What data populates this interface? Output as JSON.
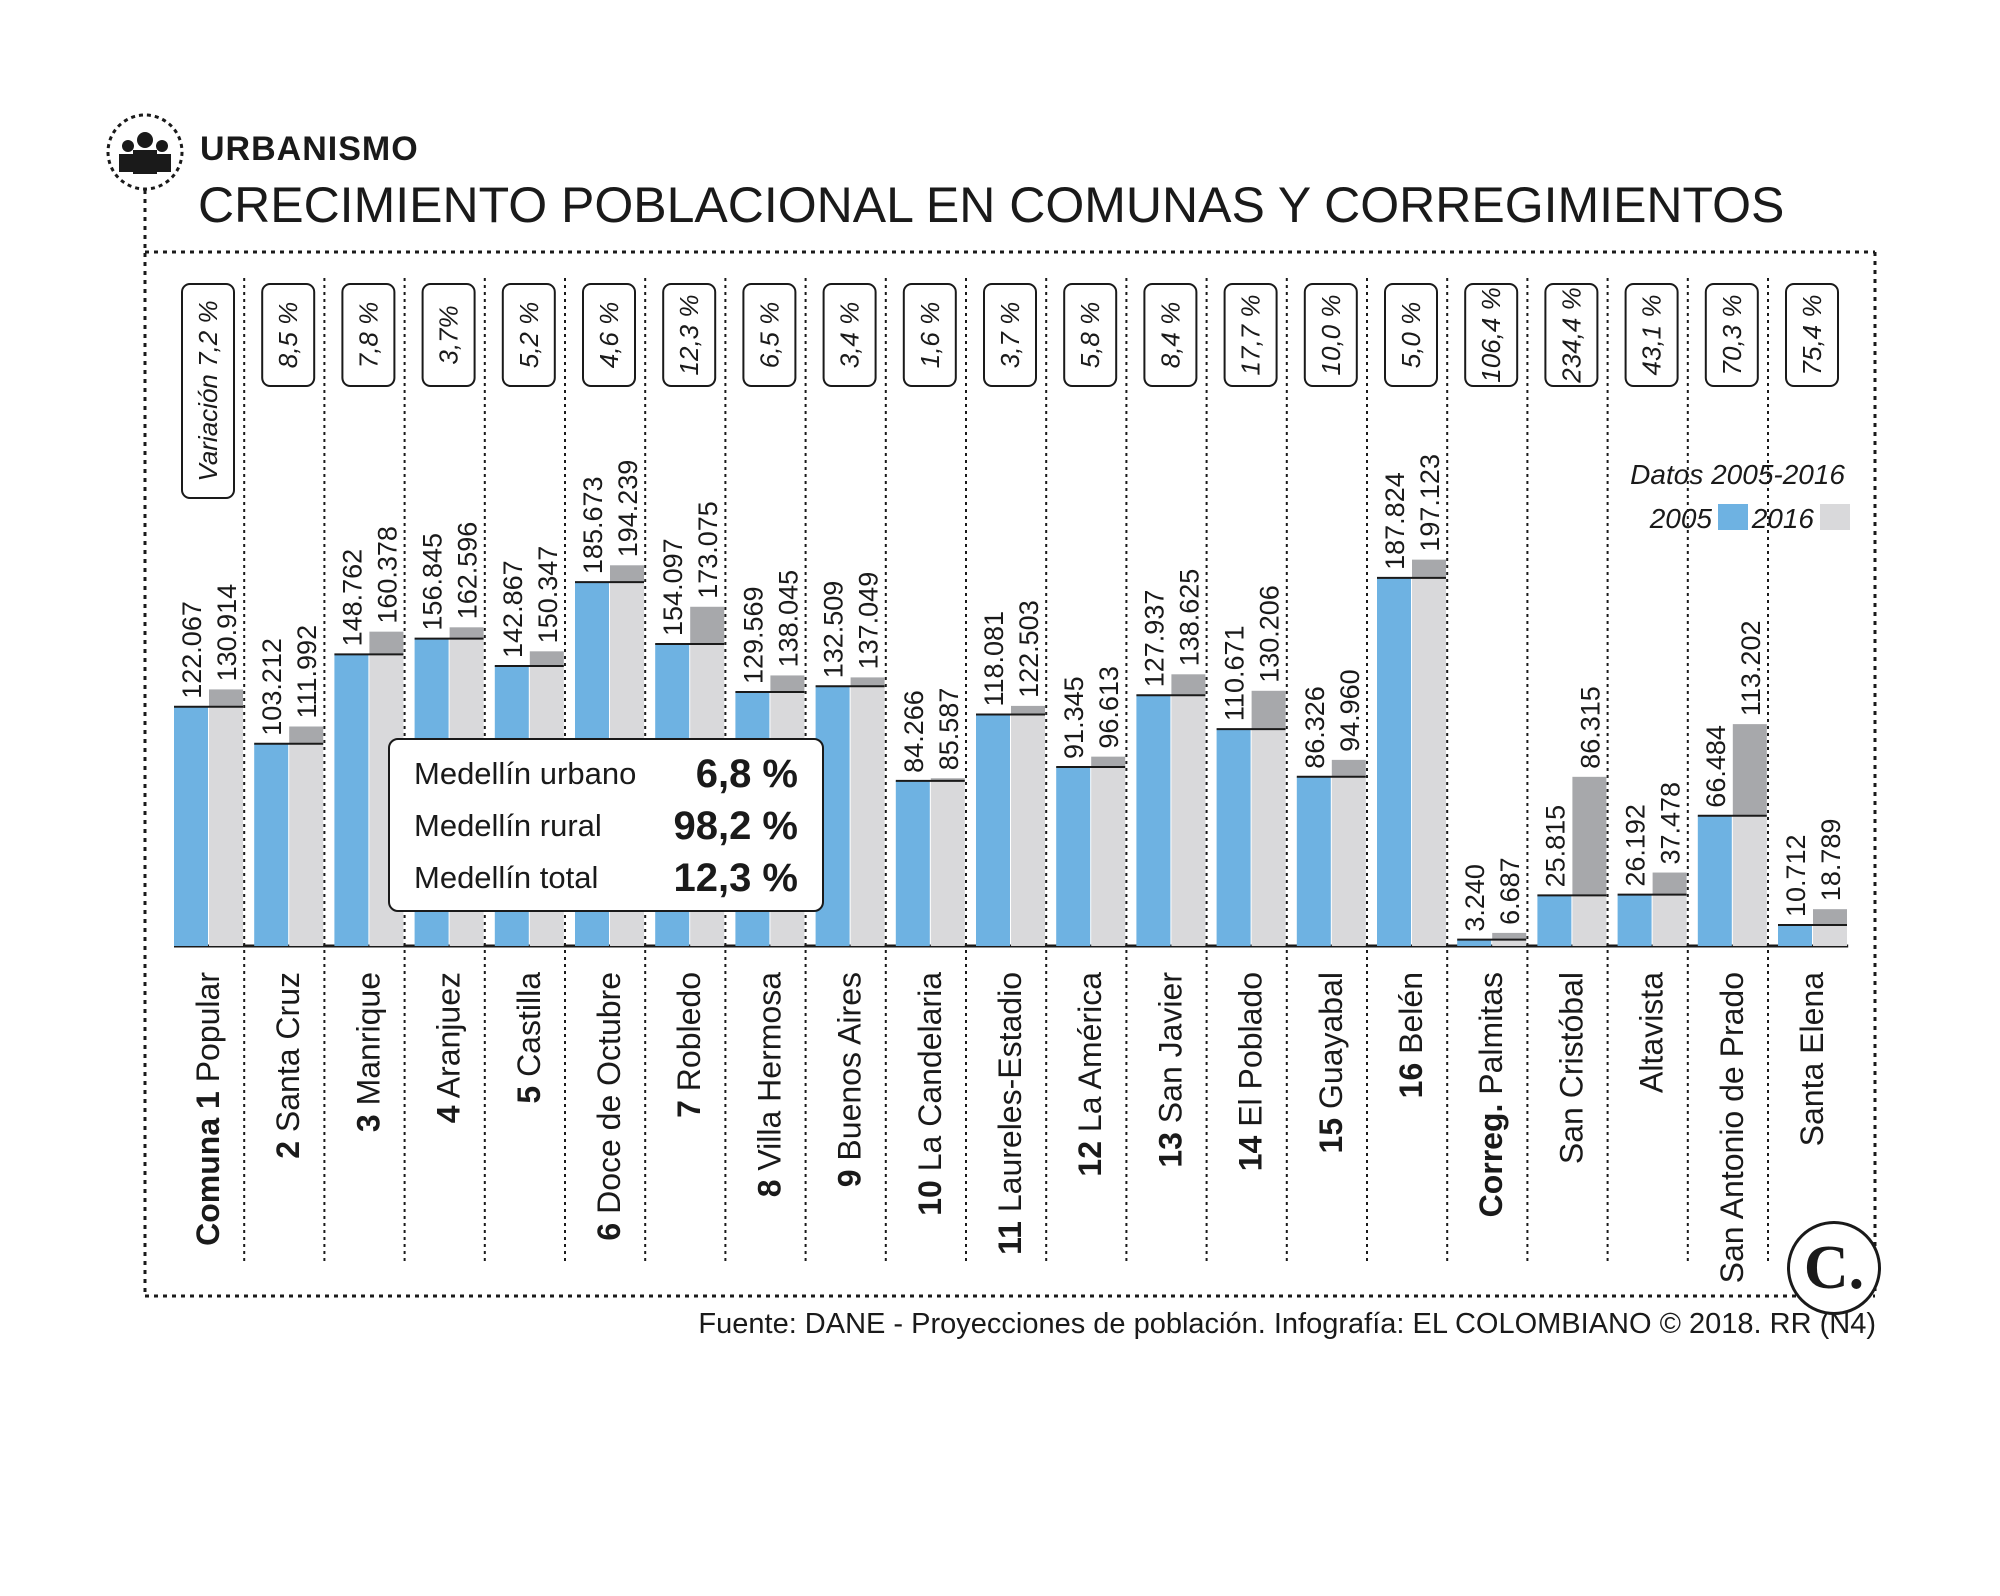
{
  "header": {
    "section": "URBANISMO",
    "title": "CRECIMIENTO POBLACIONAL EN COMUNAS Y CORREGIMIENTOS"
  },
  "footer": {
    "source": "Fuente: DANE - Proyecciones de población. Infografía: EL COLOMBIANO © 2018. RR (N4)"
  },
  "legend": {
    "title": "Datos 2005-2016",
    "label_2005": "2005",
    "label_2016": "2016"
  },
  "summary": [
    {
      "label": "Medellín urbano",
      "value": "6,8 %"
    },
    {
      "label": "Medellín rural",
      "value": "98,2 %"
    },
    {
      "label": "Medellín total",
      "value": "12,3 %"
    }
  ],
  "logo": {
    "mark": "C."
  },
  "colors": {
    "series_2005": "#6eb2e2",
    "series_2016": "#d9d9db",
    "growth": "#a7a8ab",
    "ink": "#1a1a1a"
  },
  "chart_data": {
    "type": "bar",
    "title": "CRECIMIENTO POBLACIONAL EN COMUNAS Y CORREGIMIENTOS",
    "xlabel": "",
    "ylabel": "",
    "ylim": [
      0,
      200000
    ],
    "series": [
      {
        "name": "2005",
        "values": [
          122067,
          103212,
          148762,
          156845,
          142867,
          185673,
          154097,
          129569,
          132509,
          84266,
          118081,
          91345,
          127937,
          110671,
          86326,
          187824,
          3240,
          25815,
          26192,
          66484,
          10712
        ]
      },
      {
        "name": "2016",
        "values": [
          130914,
          111992,
          160378,
          162596,
          150347,
          194239,
          173075,
          138045,
          137049,
          85587,
          122503,
          96613,
          138625,
          130206,
          94960,
          197123,
          6687,
          86315,
          37478,
          113202,
          18789
        ]
      }
    ],
    "categories": [
      {
        "bold": "Comuna 1",
        "name": " Popular",
        "v2005": "122.067",
        "v2016": "130.914",
        "variation": "Variación 7,2 %"
      },
      {
        "bold": "2",
        "name": " Santa Cruz",
        "v2005": "103.212",
        "v2016": "111.992",
        "variation": "8,5 %"
      },
      {
        "bold": "3",
        "name": " Manrique",
        "v2005": "148.762",
        "v2016": "160.378",
        "variation": "7,8 %"
      },
      {
        "bold": "4",
        "name": " Aranjuez",
        "v2005": "156.845",
        "v2016": "162.596",
        "variation": "3,7%"
      },
      {
        "bold": "5",
        "name": " Castilla",
        "v2005": "142.867",
        "v2016": "150.347",
        "variation": "5,2 %"
      },
      {
        "bold": "6",
        "name": " Doce de Octubre",
        "v2005": "185.673",
        "v2016": "194.239",
        "variation": "4,6 %"
      },
      {
        "bold": "7",
        "name": " Robledo",
        "v2005": "154.097",
        "v2016": "173.075",
        "variation": "12,3 %"
      },
      {
        "bold": "8",
        "name": " Villa Hermosa",
        "v2005": "129.569",
        "v2016": "138.045",
        "variation": "6,5 %"
      },
      {
        "bold": "9",
        "name": " Buenos Aires",
        "v2005": "132.509",
        "v2016": "137.049",
        "variation": "3,4 %"
      },
      {
        "bold": "10",
        "name": " La Candelaria",
        "v2005": "84.266",
        "v2016": "85.587",
        "variation": "1,6 %"
      },
      {
        "bold": "11",
        "name": " Laureles-Estadio",
        "v2005": "118.081",
        "v2016": "122.503",
        "variation": "3,7 %"
      },
      {
        "bold": "12",
        "name": " La América",
        "v2005": "91.345",
        "v2016": "96.613",
        "variation": "5,8 %"
      },
      {
        "bold": "13",
        "name": " San Javier",
        "v2005": "127.937",
        "v2016": "138.625",
        "variation": "8,4 %"
      },
      {
        "bold": "14",
        "name": " El Poblado",
        "v2005": "110.671",
        "v2016": "130.206",
        "variation": "17,7 %"
      },
      {
        "bold": "15",
        "name": " Guayabal",
        "v2005": "86.326",
        "v2016": "94.960",
        "variation": "10,0 %"
      },
      {
        "bold": "16",
        "name": " Belén",
        "v2005": "187.824",
        "v2016": "197.123",
        "variation": "5,0 %"
      },
      {
        "bold": "Correg.",
        "name": " Palmitas",
        "v2005": "3.240",
        "v2016": "6.687",
        "variation": "106,4 %"
      },
      {
        "bold": "",
        "name": "San Cristóbal",
        "v2005": "25.815",
        "v2016": "86.315",
        "variation": "234,4 %"
      },
      {
        "bold": "",
        "name": "Altavista",
        "v2005": "26.192",
        "v2016": "37.478",
        "variation": "43,1 %"
      },
      {
        "bold": "",
        "name": "San Antonio de Prado",
        "v2005": "66.484",
        "v2016": "113.202",
        "variation": "70,3 %"
      },
      {
        "bold": "",
        "name": "Santa Elena",
        "v2005": "10.712",
        "v2016": "18.789",
        "variation": "75,4 %"
      }
    ]
  }
}
